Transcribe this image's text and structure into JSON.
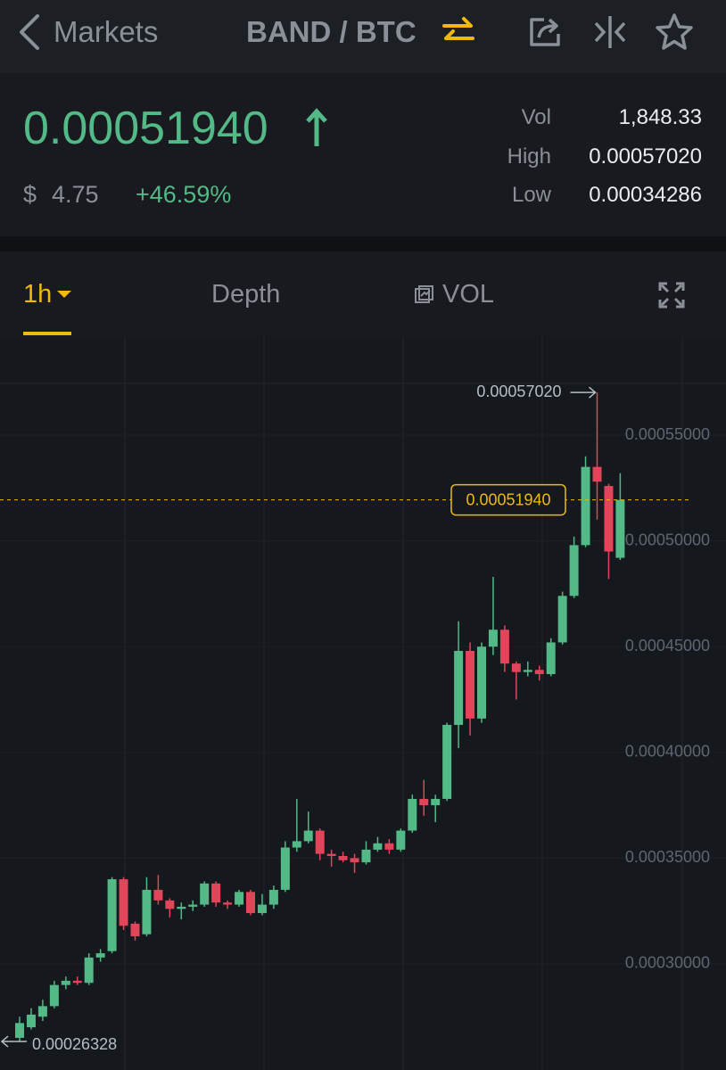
{
  "header": {
    "back": "Markets",
    "pair": "BAND / BTC"
  },
  "ticker": {
    "price": "0.00051940",
    "currency": "$",
    "fiat_price": "4.75",
    "change": "+46.59%",
    "stats": [
      {
        "label": "Vol",
        "value": "1,848.33"
      },
      {
        "label": "High",
        "value": "0.00057020"
      },
      {
        "label": "Low",
        "value": "0.00034286"
      }
    ]
  },
  "tabs": [
    "1h",
    "Depth",
    "VOL"
  ],
  "chart_data": {
    "type": "candlestick",
    "up_color": "#53b987",
    "down_color": "#e0455a",
    "ylim": [
      0.0002498,
      0.0005964
    ],
    "yticks": [
      {
        "value": 0.00055,
        "label": "0.00055000"
      },
      {
        "value": 0.0005,
        "label": "0.00050000"
      },
      {
        "value": 0.00045,
        "label": "0.00045000"
      },
      {
        "value": 0.0004,
        "label": "0.00040000"
      },
      {
        "value": 0.00035,
        "label": "0.00035000"
      },
      {
        "value": 0.0003,
        "label": "0.00030000"
      }
    ],
    "open": [
      0.000265,
      0.00027,
      0.000275,
      0.00028,
      0.00029,
      0.000292,
      0.000291,
      0.000303,
      0.000306,
      0.00034,
      0.000319,
      0.000314,
      0.000335,
      0.00033,
      0.000326,
      0.000327,
      0.000328,
      0.000338,
      0.000329,
      0.000328,
      0.000334,
      0.000324,
      0.000328,
      0.000335,
      0.000355,
      0.000358,
      0.000363,
      0.000352,
      0.000351,
      0.00035,
      0.000348,
      0.000354,
      0.000357,
      0.000354,
      0.000363,
      0.000378,
      0.000375,
      0.000378,
      0.000413,
      0.000448,
      0.000416,
      0.00045,
      0.000458,
      0.000442,
      0.000438,
      0.000439,
      0.000437,
      0.000452,
      0.000474,
      0.000498,
      0.000535,
      0.000526,
      0.000492
    ],
    "high": [
      0.000275,
      0.000279,
      0.000283,
      0.000292,
      0.000294,
      0.000294,
      0.000305,
      0.000307,
      0.000341,
      0.000341,
      0.00032,
      0.000341,
      0.000342,
      0.000331,
      0.000329,
      0.00033,
      0.000339,
      0.000339,
      0.00033,
      0.000335,
      0.000335,
      0.000333,
      0.000337,
      0.000358,
      0.000378,
      0.000372,
      0.000364,
      0.000354,
      0.000353,
      0.000352,
      0.000358,
      0.00036,
      0.000359,
      0.000364,
      0.00038,
      0.000387,
      0.00038,
      0.000414,
      0.000462,
      0.000452,
      0.000452,
      0.000483,
      0.00046,
      0.000443,
      0.000443,
      0.000441,
      0.000454,
      0.000476,
      0.000502,
      0.00054,
      0.0005702,
      0.000527,
      0.000532
    ],
    "low": [
      0.00026328,
      0.000269,
      0.000273,
      0.000279,
      0.000288,
      0.00029,
      0.00029,
      0.000301,
      0.000305,
      0.000316,
      0.000311,
      0.000313,
      0.000328,
      0.000322,
      0.000321,
      0.000325,
      0.000327,
      0.000327,
      0.000326,
      0.000327,
      0.000323,
      0.000323,
      0.000326,
      0.000334,
      0.000353,
      0.000357,
      0.000349,
      0.000346,
      0.000348,
      0.000343,
      0.000347,
      0.000353,
      0.000352,
      0.000353,
      0.000362,
      0.00037,
      0.000367,
      0.000377,
      0.000402,
      0.000408,
      0.000414,
      0.000446,
      0.000438,
      0.000425,
      0.000436,
      0.000434,
      0.000436,
      0.000451,
      0.000473,
      0.000497,
      0.00051,
      0.000482,
      0.000491
    ],
    "close": [
      0.000272,
      0.000276,
      0.00028,
      0.00029,
      0.000292,
      0.000291,
      0.000303,
      0.000305,
      0.00034,
      0.000318,
      0.000313,
      0.000335,
      0.00033,
      0.000326,
      0.000327,
      0.000328,
      0.000338,
      0.000329,
      0.000328,
      0.000334,
      0.000324,
      0.000328,
      0.000335,
      0.000355,
      0.000358,
      0.000363,
      0.000352,
      0.000351,
      0.000349,
      0.000348,
      0.000354,
      0.000357,
      0.000354,
      0.000363,
      0.000378,
      0.000375,
      0.000378,
      0.000413,
      0.000448,
      0.000416,
      0.00045,
      0.000458,
      0.000442,
      0.000438,
      0.000439,
      0.000437,
      0.000452,
      0.000474,
      0.000498,
      0.000535,
      0.000528,
      0.000495,
      0.0005194
    ],
    "high_marker": {
      "value": 0.0005702,
      "label": "0.00057020"
    },
    "low_marker": 0.00026328,
    "last_price": {
      "value": 0.0005194,
      "label": "0.00051940"
    }
  }
}
